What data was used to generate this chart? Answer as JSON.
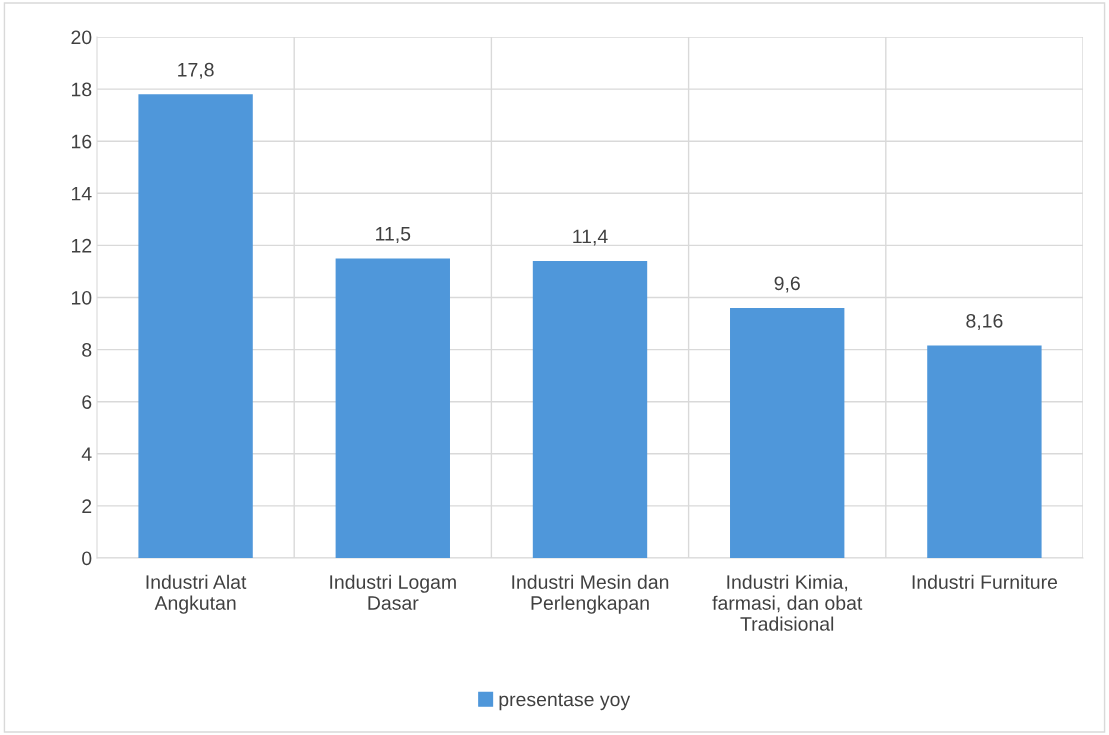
{
  "chart_data": {
    "type": "bar",
    "categories": [
      "Industri Alat\nAngkutan",
      "Industri Logam\nDasar",
      "Industri Mesin dan\nPerlengkapan",
      "Industri Kimia,\nfarmasi, dan obat\nTradisional",
      "Industri Furniture"
    ],
    "series": [
      {
        "name": "presentase yoy",
        "color": "#4f97da",
        "values": [
          17.8,
          11.5,
          11.4,
          9.6,
          8.16
        ],
        "value_labels": [
          "17,8",
          "11,5",
          "11,4",
          "9,6",
          "8,16"
        ]
      }
    ],
    "ylim": [
      0,
      20
    ],
    "yticks": [
      0,
      2,
      4,
      6,
      8,
      10,
      12,
      14,
      16,
      18,
      20
    ],
    "grid": true,
    "legend": "bottom"
  }
}
